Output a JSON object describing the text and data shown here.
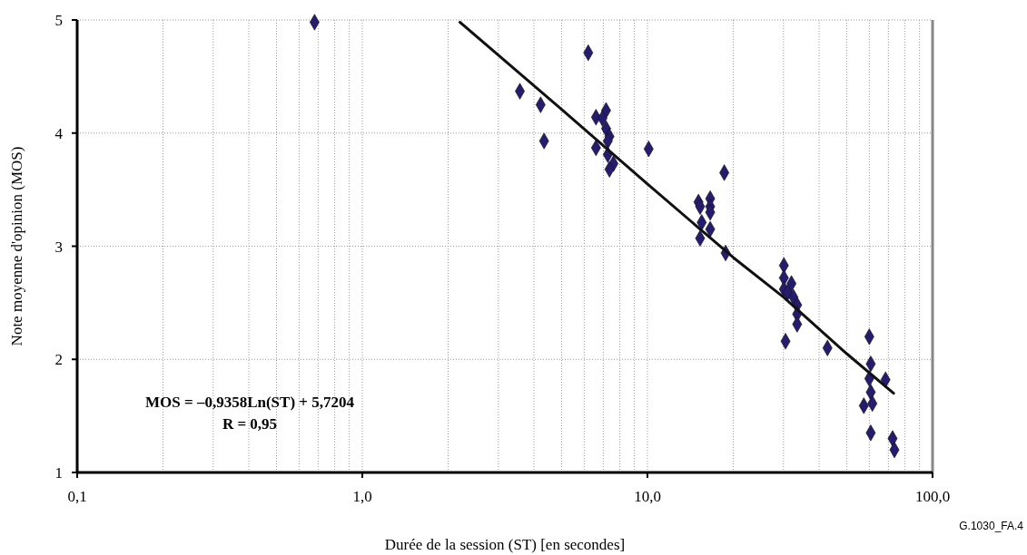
{
  "chart_data": {
    "type": "scatter",
    "xlabel": "Durée de la session (ST) [en secondes]",
    "ylabel": "Note moyenne d'opinion (MOS)",
    "log": "x",
    "xlim": [
      0.1,
      100
    ],
    "ylim": [
      1,
      5
    ],
    "xticks": [
      {
        "value": 0.1,
        "label": "0,1"
      },
      {
        "value": 0.2,
        "label": null
      },
      {
        "value": 0.3,
        "label": null
      },
      {
        "value": 0.4,
        "label": null
      },
      {
        "value": 0.5,
        "label": null
      },
      {
        "value": 0.6,
        "label": null
      },
      {
        "value": 0.7,
        "label": null
      },
      {
        "value": 0.8,
        "label": null
      },
      {
        "value": 0.9,
        "label": null
      },
      {
        "value": 1,
        "label": "1,0"
      },
      {
        "value": 2,
        "label": null
      },
      {
        "value": 3,
        "label": null
      },
      {
        "value": 4,
        "label": null
      },
      {
        "value": 5,
        "label": null
      },
      {
        "value": 6,
        "label": null
      },
      {
        "value": 7,
        "label": null
      },
      {
        "value": 8,
        "label": null
      },
      {
        "value": 9,
        "label": null
      },
      {
        "value": 10,
        "label": "10,0"
      },
      {
        "value": 20,
        "label": null
      },
      {
        "value": 30,
        "label": null
      },
      {
        "value": 40,
        "label": null
      },
      {
        "value": 50,
        "label": null
      },
      {
        "value": 60,
        "label": null
      },
      {
        "value": 70,
        "label": null
      },
      {
        "value": 80,
        "label": null
      },
      {
        "value": 90,
        "label": null
      },
      {
        "value": 100,
        "label": "100,0"
      }
    ],
    "yticks": [
      1,
      2,
      3,
      4,
      5
    ],
    "grid": true,
    "series": [
      {
        "marker": "diamond",
        "color": "#261c6e",
        "x": [
          0.68,
          3.57,
          4.22,
          4.34,
          6.2,
          6.6,
          7.16,
          6.95,
          7.16,
          7.36,
          7.26,
          6.6,
          7.26,
          7.6,
          7.36,
          10.1,
          15.1,
          15.3,
          15.5,
          15.3,
          16.6,
          16.6,
          16.6,
          16.6,
          18.6,
          18.8,
          30.1,
          30.1,
          32,
          30.1,
          31,
          32.5,
          33.5,
          33.5,
          33.5,
          30.5,
          42.8,
          60,
          60.7,
          60,
          68.4,
          60.7,
          57.4,
          61.5,
          60.7,
          72.4,
          73.5
        ],
        "values": [
          4.98,
          4.37,
          4.25,
          3.93,
          4.71,
          4.14,
          4.2,
          4.13,
          4.04,
          3.97,
          3.93,
          3.87,
          3.81,
          3.73,
          3.68,
          3.86,
          3.39,
          3.35,
          3.21,
          3.07,
          3.42,
          3.35,
          3.3,
          3.15,
          3.65,
          2.94,
          2.83,
          2.72,
          2.67,
          2.62,
          2.59,
          2.55,
          2.48,
          2.4,
          2.31,
          2.16,
          2.1,
          2.2,
          1.96,
          1.83,
          1.82,
          1.71,
          1.59,
          1.61,
          1.35,
          1.3,
          1.2
        ]
      },
      {
        "type": "line",
        "line_style": "solid",
        "color": "#111111",
        "x": [
          2.2,
          5,
          10,
          20,
          30,
          50,
          73
        ],
        "values": [
          4.98,
          4.21,
          3.55,
          2.9,
          2.55,
          2.05,
          1.7
        ]
      }
    ],
    "annotations": [
      "MOS = –0,9358Ln(ST) + 5,7204\nR = 0,95",
      "G.1030_FA.4"
    ]
  }
}
